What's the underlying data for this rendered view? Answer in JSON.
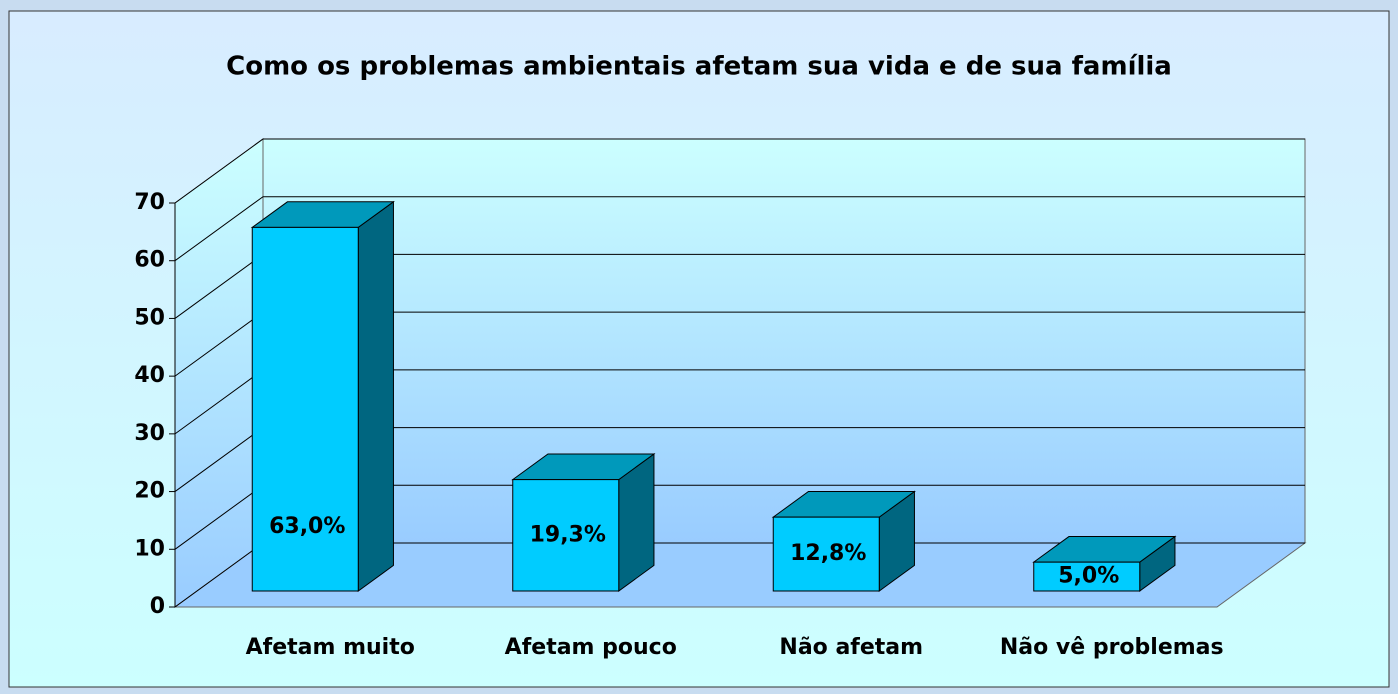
{
  "chart_data": {
    "type": "bar3d",
    "title": "Como os problemas ambientais afetam sua vida e de sua família",
    "categories": [
      "Afetam muito",
      "Afetam pouco",
      "Não afetam",
      "Não vê problemas"
    ],
    "values": [
      63.0,
      19.3,
      12.8,
      5.0
    ],
    "value_labels": [
      "63,0%",
      "19,3%",
      "12,8%",
      "5,0%"
    ],
    "color": "#00ccff",
    "ylim": [
      0,
      70
    ],
    "yticks": [
      0,
      10,
      20,
      30,
      40,
      50,
      60,
      70
    ],
    "grid": true
  }
}
